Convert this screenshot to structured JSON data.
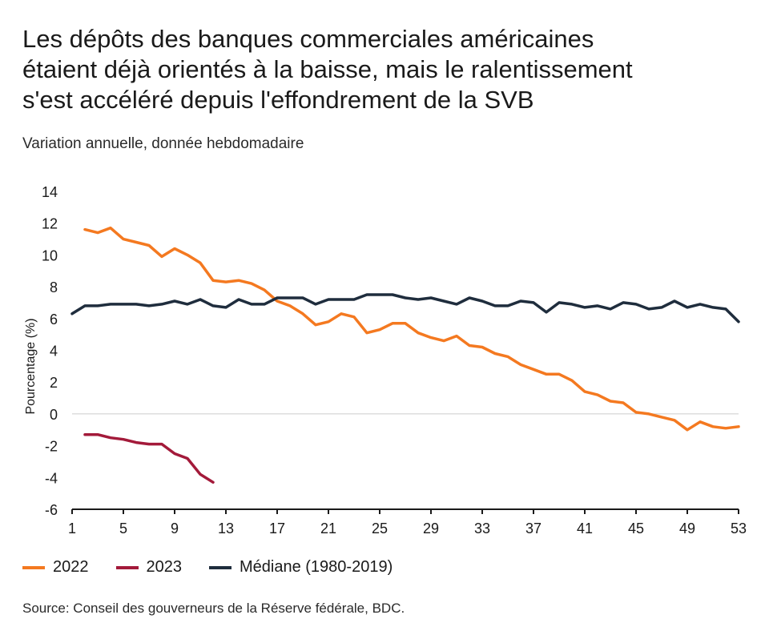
{
  "title_lines": [
    "Les dépôts des banques commerciales américaines",
    "étaient déjà orientés à la baisse, mais le ralentissement",
    "s'est accéléré depuis l'effondrement de la SVB"
  ],
  "subtitle": "Variation annuelle, donnée hebdomadaire",
  "source": "Source: Conseil des gouverneurs de la Réserve fédérale, BDC.",
  "colors": {
    "s2022": "#F47920",
    "s2023": "#A31A3A",
    "median": "#1F2D3D",
    "axis": "#1a1a1a",
    "zero": "#cccccc"
  },
  "chart_data": {
    "type": "line",
    "ylabel": "Pourcentage (%)",
    "xlabel": "",
    "xlim": [
      1,
      53
    ],
    "ylim": [
      -6,
      14
    ],
    "x_ticks": [
      "1",
      "5",
      "9",
      "13",
      "17",
      "21",
      "25",
      "29",
      "33",
      "37",
      "41",
      "45",
      "49",
      "53"
    ],
    "y_ticks": [
      "14",
      "12",
      "10",
      "8",
      "6",
      "4",
      "2",
      "0",
      "-2",
      "-4",
      "-6"
    ],
    "grid": false,
    "legend_position": "bottom",
    "series": [
      {
        "name": "2022",
        "color": "#F47920",
        "x": [
          2,
          3,
          4,
          5,
          6,
          7,
          8,
          9,
          10,
          11,
          12,
          13,
          14,
          15,
          16,
          17,
          18,
          19,
          20,
          21,
          22,
          23,
          24,
          25,
          26,
          27,
          28,
          29,
          30,
          31,
          32,
          33,
          34,
          35,
          36,
          37,
          38,
          39,
          40,
          41,
          42,
          43,
          44,
          45,
          46,
          47,
          48,
          49,
          50,
          51,
          52,
          53
        ],
        "values": [
          11.6,
          11.4,
          11.7,
          11.0,
          10.8,
          10.6,
          9.9,
          10.4,
          10.0,
          9.5,
          8.4,
          8.3,
          8.4,
          8.2,
          7.8,
          7.1,
          6.8,
          6.3,
          5.6,
          5.8,
          6.3,
          6.1,
          5.1,
          5.3,
          5.7,
          5.7,
          5.1,
          4.8,
          4.6,
          4.9,
          4.3,
          4.2,
          3.8,
          3.6,
          3.1,
          2.8,
          2.5,
          2.5,
          2.1,
          1.4,
          1.2,
          0.8,
          0.7,
          0.1,
          0.0,
          -0.2,
          -0.4,
          -1.0,
          -0.5,
          -0.8,
          -0.9,
          -0.8
        ]
      },
      {
        "name": "2023",
        "color": "#A31A3A",
        "x": [
          2,
          3,
          4,
          5,
          6,
          7,
          8,
          9,
          10,
          11,
          12
        ],
        "values": [
          -1.3,
          -1.3,
          -1.5,
          -1.6,
          -1.8,
          -1.9,
          -1.9,
          -2.5,
          -2.8,
          -3.8,
          -4.3
        ]
      },
      {
        "name": "Médiane (1980-2019)",
        "color": "#1F2D3D",
        "x": [
          1,
          2,
          3,
          4,
          5,
          6,
          7,
          8,
          9,
          10,
          11,
          12,
          13,
          14,
          15,
          16,
          17,
          18,
          19,
          20,
          21,
          22,
          23,
          24,
          25,
          26,
          27,
          28,
          29,
          30,
          31,
          32,
          33,
          34,
          35,
          36,
          37,
          38,
          39,
          40,
          41,
          42,
          43,
          44,
          45,
          46,
          47,
          48,
          49,
          50,
          51,
          52,
          53
        ],
        "values": [
          6.3,
          6.8,
          6.8,
          6.9,
          6.9,
          6.9,
          6.8,
          6.9,
          7.1,
          6.9,
          7.2,
          6.8,
          6.7,
          7.2,
          6.9,
          6.9,
          7.3,
          7.3,
          7.3,
          6.9,
          7.2,
          7.2,
          7.2,
          7.5,
          7.5,
          7.5,
          7.3,
          7.2,
          7.3,
          7.1,
          6.9,
          7.3,
          7.1,
          6.8,
          6.8,
          7.1,
          7.0,
          6.4,
          7.0,
          6.9,
          6.7,
          6.8,
          6.6,
          7.0,
          6.9,
          6.6,
          6.7,
          7.1,
          6.7,
          6.9,
          6.7,
          6.6,
          5.8
        ]
      }
    ]
  }
}
